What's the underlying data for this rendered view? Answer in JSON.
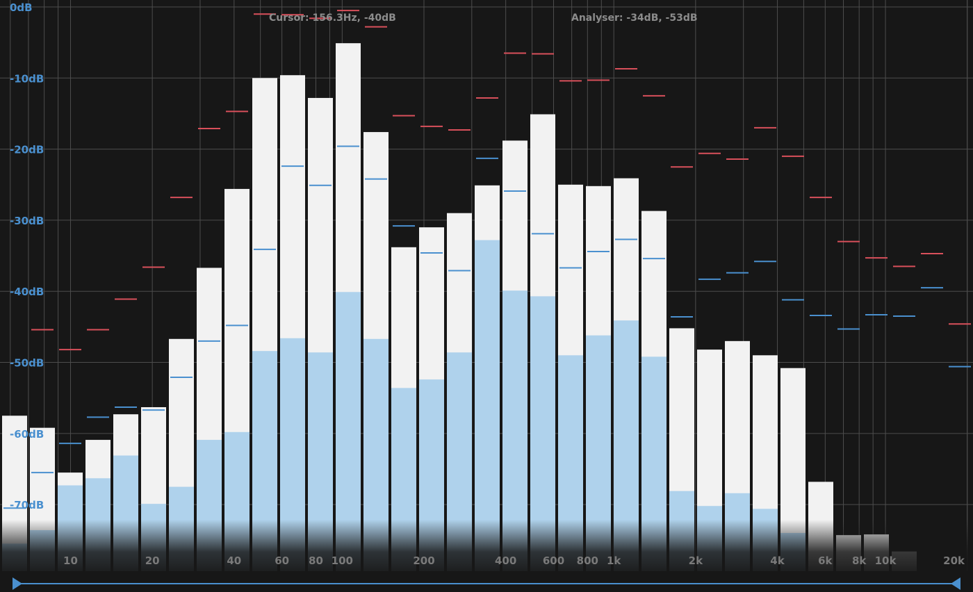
{
  "header": {
    "cursor_readout": "Cursor: 156.3Hz, -40dB",
    "analyser_readout": "Analyser: -34dB, -53dB"
  },
  "colors": {
    "background": "#171717",
    "grid": "#4d4d4d",
    "bar_peak": "#f2f2f2",
    "bar_level": "#afd2ec",
    "peak_hold": "#d9505b",
    "average_marker": "#4a90cf",
    "db_label": "#4a90cf",
    "freq_label": "#7a7a7a",
    "scroll_track": "#4a90cf"
  },
  "chart_data": {
    "type": "bar",
    "db_axis": {
      "range": [
        -78,
        0
      ],
      "tick_labels": [
        "0dB",
        "-10dB",
        "-20dB",
        "-30dB",
        "-40dB",
        "-50dB",
        "-60dB",
        "-70dB"
      ],
      "tick_values": [
        0,
        -10,
        -20,
        -30,
        -40,
        -50,
        -60,
        -70
      ]
    },
    "freq_axis": {
      "scale": "log",
      "range_hz": [
        5.5,
        21000
      ],
      "tick_labels": [
        "10",
        "20",
        "40",
        "60",
        "80",
        "100",
        "200",
        "400",
        "600",
        "800",
        "1k",
        "2k",
        "4k",
        "6k",
        "8k",
        "10k",
        "20k"
      ],
      "tick_values_hz": [
        10,
        20,
        40,
        60,
        80,
        100,
        200,
        400,
        600,
        800,
        1000,
        2000,
        4000,
        6000,
        8000,
        10000,
        20000
      ]
    },
    "bands": [
      {
        "peak_db": -57.5,
        "level_db": -75.5,
        "peak_hold_db": null,
        "average_db": -70.5
      },
      {
        "peak_db": -59.2,
        "level_db": -73.6,
        "peak_hold_db": -45.4,
        "average_db": -65.5
      },
      {
        "peak_db": -65.5,
        "level_db": -67.3,
        "peak_hold_db": -48.2,
        "average_db": -61.4
      },
      {
        "peak_db": -60.9,
        "level_db": -66.3,
        "peak_hold_db": -45.4,
        "average_db": -57.7
      },
      {
        "peak_db": -57.3,
        "level_db": -63.1,
        "peak_hold_db": -41.1,
        "average_db": -56.3
      },
      {
        "peak_db": -56.3,
        "level_db": -69.9,
        "peak_hold_db": -36.6,
        "average_db": -56.7
      },
      {
        "peak_db": -46.7,
        "level_db": -67.5,
        "peak_hold_db": -26.8,
        "average_db": -52.1
      },
      {
        "peak_db": -36.7,
        "level_db": -60.9,
        "peak_hold_db": -17.1,
        "average_db": -47.0
      },
      {
        "peak_db": -25.6,
        "level_db": -59.8,
        "peak_hold_db": -14.7,
        "average_db": -44.8
      },
      {
        "peak_db": -10.0,
        "level_db": -48.4,
        "peak_hold_db": -1.0,
        "average_db": -34.1
      },
      {
        "peak_db": -9.6,
        "level_db": -46.6,
        "peak_hold_db": -1.1,
        "average_db": -22.4
      },
      {
        "peak_db": -12.8,
        "level_db": -48.6,
        "peak_hold_db": -1.6,
        "average_db": -25.1
      },
      {
        "peak_db": -5.1,
        "level_db": -40.1,
        "peak_hold_db": -0.5,
        "average_db": -19.6
      },
      {
        "peak_db": -17.6,
        "level_db": -46.7,
        "peak_hold_db": -2.8,
        "average_db": -24.2
      },
      {
        "peak_db": -33.8,
        "level_db": -53.6,
        "peak_hold_db": -15.3,
        "average_db": -30.8
      },
      {
        "peak_db": -31.0,
        "level_db": -52.4,
        "peak_hold_db": -16.8,
        "average_db": -34.6
      },
      {
        "peak_db": -29.0,
        "level_db": -48.6,
        "peak_hold_db": -17.3,
        "average_db": -37.1
      },
      {
        "peak_db": -25.1,
        "level_db": -32.8,
        "peak_hold_db": -12.8,
        "average_db": -21.3
      },
      {
        "peak_db": -18.8,
        "level_db": -39.9,
        "peak_hold_db": -6.5,
        "average_db": -25.9
      },
      {
        "peak_db": -15.1,
        "level_db": -40.7,
        "peak_hold_db": -6.6,
        "average_db": -31.9
      },
      {
        "peak_db": -25.0,
        "level_db": -49.0,
        "peak_hold_db": -10.4,
        "average_db": -36.7
      },
      {
        "peak_db": -25.2,
        "level_db": -46.2,
        "peak_hold_db": -10.3,
        "average_db": -34.4
      },
      {
        "peak_db": -24.1,
        "level_db": -44.1,
        "peak_hold_db": -8.7,
        "average_db": -32.7
      },
      {
        "peak_db": -28.7,
        "level_db": -49.2,
        "peak_hold_db": -12.5,
        "average_db": -35.4
      },
      {
        "peak_db": -45.2,
        "level_db": -68.1,
        "peak_hold_db": -22.5,
        "average_db": -43.6
      },
      {
        "peak_db": -48.2,
        "level_db": -70.2,
        "peak_hold_db": -20.6,
        "average_db": -38.3
      },
      {
        "peak_db": -47.0,
        "level_db": -68.4,
        "peak_hold_db": -21.4,
        "average_db": -37.4
      },
      {
        "peak_db": -49.0,
        "level_db": -70.6,
        "peak_hold_db": -17.0,
        "average_db": -35.8
      },
      {
        "peak_db": -50.8,
        "level_db": -74.0,
        "peak_hold_db": -21.0,
        "average_db": -41.2
      },
      {
        "peak_db": -66.8,
        "level_db": null,
        "peak_hold_db": -26.8,
        "average_db": -43.4
      },
      {
        "peak_db": -74.3,
        "level_db": null,
        "peak_hold_db": -33.0,
        "average_db": -45.3
      },
      {
        "peak_db": -74.2,
        "level_db": null,
        "peak_hold_db": -35.3,
        "average_db": -43.3
      },
      {
        "peak_db": -76.6,
        "level_db": null,
        "peak_hold_db": -36.5,
        "average_db": -43.5
      },
      {
        "peak_db": null,
        "level_db": null,
        "peak_hold_db": -34.7,
        "average_db": -39.5
      },
      {
        "peak_db": null,
        "level_db": null,
        "peak_hold_db": -44.6,
        "average_db": -50.6
      }
    ]
  }
}
